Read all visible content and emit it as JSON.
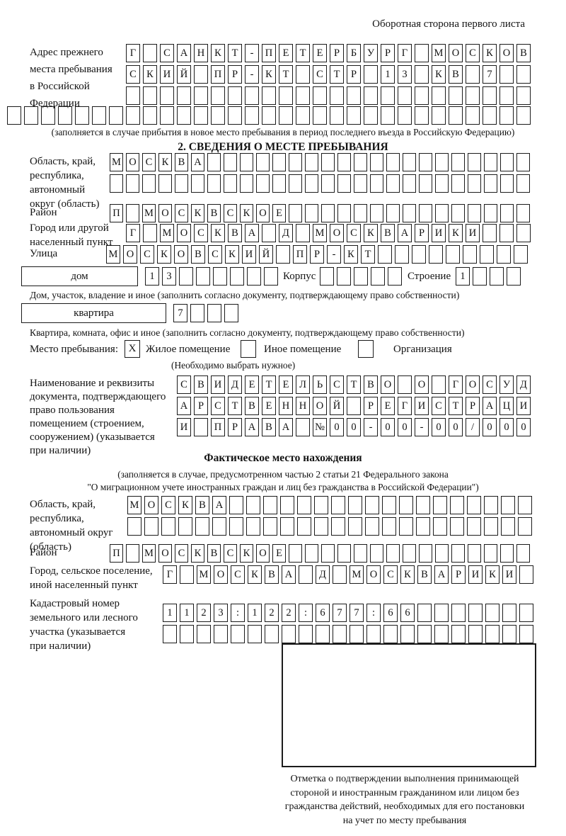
{
  "page": {
    "header_note": "Оборотная сторона первого листа",
    "fill_note": "(заполняется в случае прибытия в новое место пребывания в период последнего въезда в Российскую Федерацию)",
    "section2_title": "2. СВЕДЕНИЯ О МЕСТЕ ПРЕБЫВАНИЯ",
    "actual_title": "Фактическое место нахождения",
    "actual_note_lines": [
      "(заполняется в случае, предусмотренном частью 2 статьи 21 Федерального закона",
      "\"О миграционном учете иностранных граждан и лиц без гражданства в Российской Федерации\")"
    ],
    "stamp_note_lines": [
      "Отметка о подтверждении выполнения принимающей",
      "стороной и иностранным гражданином или лицом без",
      "гражданства действий, необходимых для его постановки",
      "на учет по месту пребывания"
    ]
  },
  "prev_address": {
    "label_lines": [
      "Адрес прежнего",
      "места пребывания",
      "в Российской",
      "Федерации"
    ],
    "row1": [
      "Г",
      "",
      "С",
      "А",
      "Н",
      "К",
      "Т",
      "-",
      "П",
      "Е",
      "Т",
      "Е",
      "Р",
      "Б",
      "У",
      "Р",
      "Г",
      "",
      "М",
      "О",
      "С",
      "К",
      "О",
      "В"
    ],
    "row2": [
      "С",
      "К",
      "И",
      "Й",
      "",
      "П",
      "Р",
      "-",
      "К",
      "Т",
      "",
      "С",
      "Т",
      "Р",
      "",
      "1",
      "3",
      "",
      "К",
      "В",
      "",
      "7",
      "",
      ""
    ],
    "row3": [
      "",
      "",
      "",
      "",
      "",
      "",
      "",
      "",
      "",
      "",
      "",
      "",
      "",
      "",
      "",
      "",
      "",
      "",
      "",
      "",
      "",
      "",
      "",
      ""
    ],
    "row4": [
      "",
      "",
      "",
      "",
      "",
      "",
      "",
      "",
      "",
      "",
      "",
      "",
      "",
      "",
      "",
      "",
      "",
      "",
      "",
      "",
      "",
      "",
      "",
      "",
      "",
      "",
      "",
      "",
      "",
      "",
      ""
    ]
  },
  "stay": {
    "oblast_label_lines": [
      "Область, край,",
      "республика,",
      "автономный",
      "округ (область)"
    ],
    "oblast_row1": [
      "М",
      "О",
      "С",
      "К",
      "В",
      "А",
      "",
      "",
      "",
      "",
      "",
      "",
      "",
      "",
      "",
      "",
      "",
      "",
      "",
      "",
      "",
      "",
      "",
      "",
      "",
      ""
    ],
    "oblast_row2": [
      "",
      "",
      "",
      "",
      "",
      "",
      "",
      "",
      "",
      "",
      "",
      "",
      "",
      "",
      "",
      "",
      "",
      "",
      "",
      "",
      "",
      "",
      "",
      "",
      "",
      ""
    ],
    "raion_label": "Район",
    "raion_row": [
      "П",
      "",
      "М",
      "О",
      "С",
      "К",
      "В",
      "С",
      "К",
      "О",
      "Е",
      "",
      "",
      "",
      "",
      "",
      "",
      "",
      "",
      "",
      "",
      "",
      "",
      "",
      "",
      ""
    ],
    "city_label_lines": [
      "Город или другой",
      "населенный пункт"
    ],
    "city_row": [
      "Г",
      "",
      "М",
      "О",
      "С",
      "К",
      "В",
      "А",
      "",
      "Д",
      "",
      "М",
      "О",
      "С",
      "К",
      "В",
      "А",
      "Р",
      "И",
      "К",
      "И",
      "",
      "",
      ""
    ],
    "street_label": "Улица",
    "street_row": [
      "М",
      "О",
      "С",
      "К",
      "О",
      "В",
      "С",
      "К",
      "И",
      "Й",
      "",
      "П",
      "Р",
      "-",
      "К",
      "Т",
      "",
      "",
      "",
      "",
      "",
      "",
      "",
      "",
      ""
    ],
    "house_box_label": "дом",
    "house_row": [
      "1",
      "3",
      "",
      "",
      "",
      "",
      "",
      ""
    ],
    "korpus_label": "Корпус",
    "korpus_row": [
      "",
      "",
      "",
      "",
      ""
    ],
    "stroenie_label": "Строение",
    "stroenie_row": [
      "1",
      "",
      "",
      ""
    ],
    "house_caption": "Дом, участок, владение и иное (заполнить согласно документу, подтверждающему право собственности)",
    "apt_box_label": "квартира",
    "apt_row": [
      "7",
      "",
      "",
      ""
    ],
    "apt_caption": "Квартира, комната, офис и иное (заполнить согласно документу, подтверждающему право собственности)",
    "place_label": "Место пребывания:",
    "place_options": [
      {
        "mark": "X",
        "label": "Жилое помещение"
      },
      {
        "mark": "",
        "label": "Иное помещение"
      },
      {
        "mark": "",
        "label": "Организация"
      }
    ],
    "place_note": "(Необходимо выбрать нужное)",
    "doc_label_lines": [
      "Наименование и реквизиты",
      "документа, подтверждающего",
      "право пользования",
      "помещением (строением,",
      "сооружением) (указывается",
      "при наличии)"
    ],
    "doc_row1": [
      "С",
      "В",
      "И",
      "Д",
      "Е",
      "Т",
      "Е",
      "Л",
      "Ь",
      "С",
      "Т",
      "В",
      "О",
      "",
      "О",
      "",
      "Г",
      "О",
      "С",
      "У",
      "Д"
    ],
    "doc_row2": [
      "А",
      "Р",
      "С",
      "Т",
      "В",
      "Е",
      "Н",
      "Н",
      "О",
      "Й",
      "",
      "Р",
      "Е",
      "Г",
      "И",
      "С",
      "Т",
      "Р",
      "А",
      "Ц",
      "И"
    ],
    "doc_row3": [
      "И",
      "",
      "П",
      "Р",
      "А",
      "В",
      "А",
      "",
      "№",
      "0",
      "0",
      "-",
      "0",
      "0",
      "-",
      "0",
      "0",
      "/",
      "0",
      "0",
      "0"
    ]
  },
  "actual": {
    "oblast_label_lines": [
      "Область, край,",
      "республика,",
      "автономный округ",
      "(область)"
    ],
    "oblast_row1": [
      "М",
      "О",
      "С",
      "К",
      "В",
      "А",
      "",
      "",
      "",
      "",
      "",
      "",
      "",
      "",
      "",
      "",
      "",
      "",
      "",
      "",
      "",
      "",
      "",
      ""
    ],
    "oblast_row2": [
      "",
      "",
      "",
      "",
      "",
      "",
      "",
      "",
      "",
      "",
      "",
      "",
      "",
      "",
      "",
      "",
      "",
      "",
      "",
      "",
      "",
      "",
      "",
      ""
    ],
    "raion_label": "Район",
    "raion_row": [
      "П",
      "",
      "М",
      "О",
      "С",
      "К",
      "В",
      "С",
      "К",
      "О",
      "Е",
      "",
      "",
      "",
      "",
      "",
      "",
      "",
      "",
      "",
      "",
      "",
      "",
      "",
      "",
      ""
    ],
    "city_label_lines": [
      "Город, сельское поселение,",
      "иной населенный пункт"
    ],
    "city_row": [
      "Г",
      "",
      "М",
      "О",
      "С",
      "К",
      "В",
      "А",
      "",
      "Д",
      "",
      "М",
      "О",
      "С",
      "К",
      "В",
      "А",
      "Р",
      "И",
      "К",
      "И",
      ""
    ],
    "cadastre_label_lines": [
      "Кадастровый номер",
      "земельного или лесного",
      "участка (указывается",
      "при наличии)"
    ],
    "cadastre_row1": [
      "1",
      "1",
      "2",
      "3",
      ":",
      "1",
      "2",
      "2",
      ":",
      "6",
      "7",
      "7",
      ":",
      "6",
      "6",
      "",
      "",
      "",
      "",
      "",
      "",
      ""
    ],
    "cadastre_row2": [
      "",
      "",
      "",
      "",
      "",
      "",
      "",
      "",
      "",
      "",
      "",
      "",
      "",
      "",
      "",
      "",
      "",
      "",
      "",
      "",
      "",
      ""
    ]
  }
}
